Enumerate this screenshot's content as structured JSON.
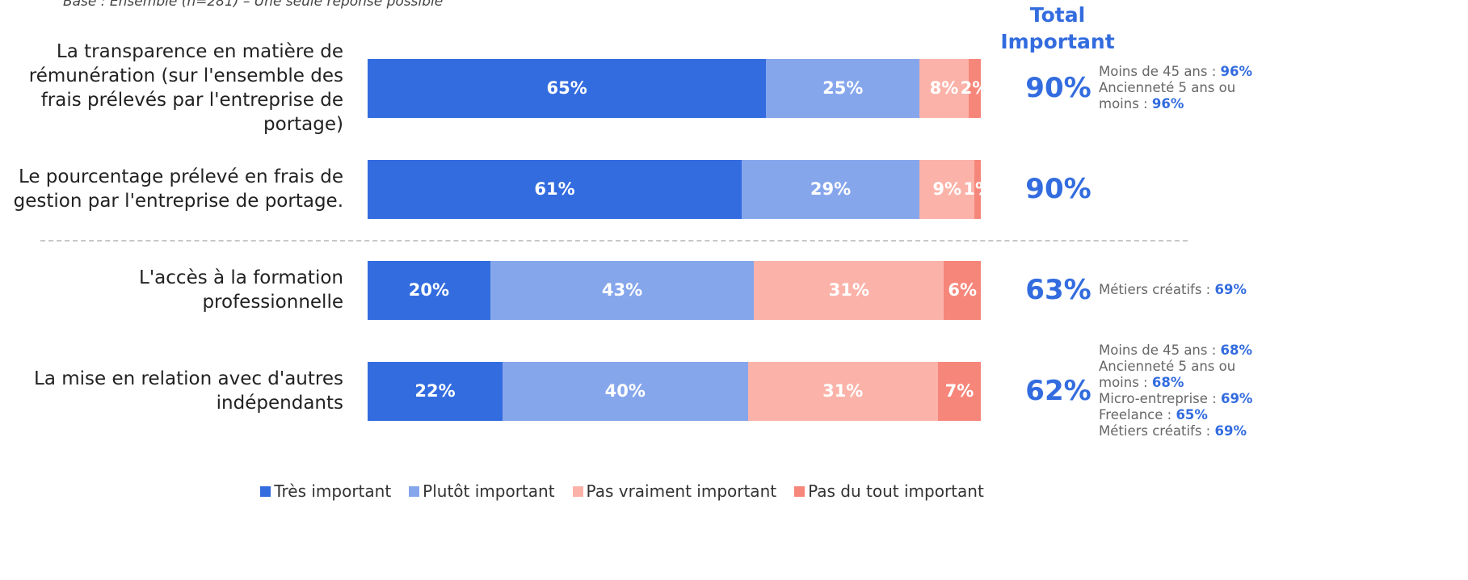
{
  "chart_data": {
    "type": "stacked_bar_horizontal",
    "subtitle": "Base : Ensemble (n=281) – Une seule réponse possible",
    "categories": [
      "La transparence en matière de rémunération (sur l'ensemble des frais prélevés par l'entreprise de portage)",
      "Le pourcentage prélevé en frais de gestion par l'entreprise de portage.",
      "L'accès à la formation professionnelle",
      "La mise en relation avec d'autres indépendants"
    ],
    "xlim": [
      0,
      100
    ],
    "series": [
      {
        "name": "Très important",
        "color": "#336cdf",
        "values": [
          65,
          61,
          20,
          22
        ],
        "value_labels": [
          "65%",
          "61%",
          "20%",
          "22%"
        ]
      },
      {
        "name": "Plutôt important",
        "color": "#86a6ec",
        "values": [
          25,
          29,
          43,
          40
        ],
        "value_labels": [
          "25%",
          "29%",
          "43%",
          "40%"
        ]
      },
      {
        "name": "Pas vraiment important",
        "color": "#fbb3a9",
        "values": [
          8,
          9,
          31,
          31
        ],
        "value_labels": [
          "8%",
          "9%",
          "31%",
          "31%"
        ]
      },
      {
        "name": "Pas du tout important",
        "color": "#f7867a",
        "values": [
          2,
          1,
          6,
          7
        ],
        "value_labels": [
          "2%",
          "1%",
          "6%",
          "7%"
        ]
      }
    ],
    "total": {
      "name": "Total Important",
      "color": "#336cdf",
      "values": [
        90,
        90,
        63,
        62
      ],
      "value_labels": [
        "90%",
        "90%",
        "63%",
        "62%"
      ]
    },
    "notes": [
      [
        {
          "label": "Moins de 45 ans :",
          "value": "96%"
        },
        {
          "label": "Ancienneté 5 ans ou moins :",
          "value": "96%"
        }
      ],
      [],
      [
        {
          "label": "Métiers créatifs :",
          "value": "69%"
        }
      ],
      [
        {
          "label": "Moins de 45 ans :",
          "value": "68%"
        },
        {
          "label": "Ancienneté 5 ans ou moins :",
          "value": "68%"
        },
        {
          "label": "Micro-entreprise :",
          "value": "69%"
        },
        {
          "label": "Freelance :",
          "value": "65%"
        },
        {
          "label": "Métiers créatifs :",
          "value": "69%"
        }
      ]
    ],
    "legend": "bottom"
  }
}
